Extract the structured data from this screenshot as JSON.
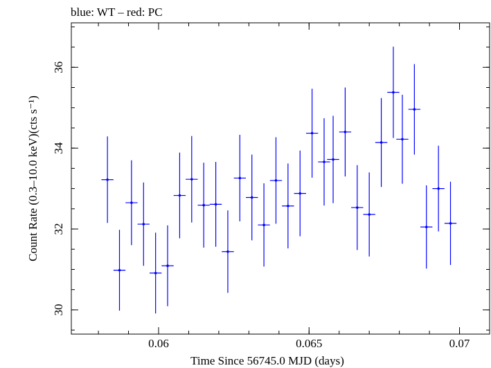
{
  "chart_data": {
    "type": "scatter",
    "title": "blue: WT – red: PC",
    "xlabel": "Time Since 56745.0 MJD (days)",
    "ylabel": "Count Rate (0.3–10.0 keV)(cts s⁻¹)",
    "xlim": [
      0.0571,
      0.071
    ],
    "ylim": [
      29.4,
      37.1
    ],
    "x_major_ticks": [
      0.06,
      0.065,
      0.07
    ],
    "x_tick_labels": [
      "0.06",
      "0.065",
      "0.07"
    ],
    "x_minor_step": 0.001,
    "y_major_ticks": [
      30,
      32,
      34,
      36
    ],
    "y_tick_labels": [
      "30",
      "32",
      "34",
      "36"
    ],
    "y_minor_step": 0.5,
    "grid": false,
    "legend": "none",
    "series": [
      {
        "color": "#0000ff",
        "x_err": 0.0002,
        "points": [
          {
            "x": 0.0583,
            "y": 33.22,
            "yerr": 1.07
          },
          {
            "x": 0.0587,
            "y": 30.98,
            "yerr": 1.0
          },
          {
            "x": 0.0591,
            "y": 32.65,
            "yerr": 1.05
          },
          {
            "x": 0.0595,
            "y": 32.12,
            "yerr": 1.03
          },
          {
            "x": 0.0599,
            "y": 30.91,
            "yerr": 1.0
          },
          {
            "x": 0.0603,
            "y": 31.09,
            "yerr": 1.0
          },
          {
            "x": 0.0607,
            "y": 32.83,
            "yerr": 1.06
          },
          {
            "x": 0.0611,
            "y": 33.23,
            "yerr": 1.07
          },
          {
            "x": 0.0615,
            "y": 32.59,
            "yerr": 1.05
          },
          {
            "x": 0.0619,
            "y": 32.61,
            "yerr": 1.05
          },
          {
            "x": 0.0623,
            "y": 31.44,
            "yerr": 1.02
          },
          {
            "x": 0.0627,
            "y": 33.26,
            "yerr": 1.07
          },
          {
            "x": 0.0631,
            "y": 32.78,
            "yerr": 1.06
          },
          {
            "x": 0.0635,
            "y": 32.1,
            "yerr": 1.03
          },
          {
            "x": 0.0639,
            "y": 33.2,
            "yerr": 1.07
          },
          {
            "x": 0.0643,
            "y": 32.57,
            "yerr": 1.05
          },
          {
            "x": 0.0647,
            "y": 32.88,
            "yerr": 1.06
          },
          {
            "x": 0.0651,
            "y": 34.37,
            "yerr": 1.1
          },
          {
            "x": 0.0655,
            "y": 33.66,
            "yerr": 1.08
          },
          {
            "x": 0.0658,
            "y": 33.72,
            "yerr": 1.08
          },
          {
            "x": 0.0662,
            "y": 34.4,
            "yerr": 1.1
          },
          {
            "x": 0.0666,
            "y": 32.53,
            "yerr": 1.05
          },
          {
            "x": 0.067,
            "y": 32.36,
            "yerr": 1.04
          },
          {
            "x": 0.0674,
            "y": 34.14,
            "yerr": 1.1
          },
          {
            "x": 0.0678,
            "y": 35.38,
            "yerr": 1.13
          },
          {
            "x": 0.0681,
            "y": 34.22,
            "yerr": 1.1
          },
          {
            "x": 0.0685,
            "y": 34.96,
            "yerr": 1.12
          },
          {
            "x": 0.0689,
            "y": 32.05,
            "yerr": 1.03
          },
          {
            "x": 0.0693,
            "y": 33.0,
            "yerr": 1.06
          },
          {
            "x": 0.0697,
            "y": 32.14,
            "yerr": 1.03
          }
        ]
      }
    ]
  }
}
